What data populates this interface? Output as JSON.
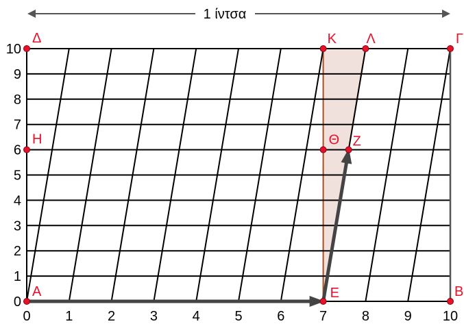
{
  "diagram": {
    "width_label": "1 ίντσα",
    "x_ticks": [
      "0",
      "1",
      "2",
      "3",
      "4",
      "5",
      "6",
      "7",
      "8",
      "9",
      "10"
    ],
    "y_ticks": [
      "0",
      "1",
      "2",
      "3",
      "4",
      "5",
      "6",
      "7",
      "8",
      "9",
      "10"
    ],
    "slant_ratio": 0.1,
    "points": [
      {
        "id": "A",
        "label": "Α",
        "x": 0,
        "y": 0
      },
      {
        "id": "B",
        "label": "Β",
        "x": 10,
        "y": 0
      },
      {
        "id": "G",
        "label": "Γ",
        "x": 10,
        "y": 10
      },
      {
        "id": "D",
        "label": "Δ",
        "x": 0,
        "y": 10
      },
      {
        "id": "E",
        "label": "Ε",
        "x": 7,
        "y": 0
      },
      {
        "id": "Z",
        "label": "Ζ",
        "x": 7.6,
        "y": 6
      },
      {
        "id": "H",
        "label": "Η",
        "x": 0,
        "y": 6
      },
      {
        "id": "TH",
        "label": "Θ",
        "x": 7,
        "y": 6
      },
      {
        "id": "K",
        "label": "Κ",
        "x": 7,
        "y": 10
      },
      {
        "id": "L",
        "label": "Λ",
        "x": 8,
        "y": 10
      }
    ],
    "shaded_triangle": [
      "E",
      "K",
      "L"
    ],
    "vectors": [
      {
        "from": "A",
        "to": "E"
      },
      {
        "from": "E",
        "to": "Z"
      }
    ],
    "colors": {
      "grid": "#000000",
      "point": "#e8102a",
      "label": "#e8102a",
      "triangle_fill": "#f1e1dd",
      "triangle_stroke": "#a8501f",
      "vector": "#444444",
      "arrow_line": "#555555"
    }
  }
}
